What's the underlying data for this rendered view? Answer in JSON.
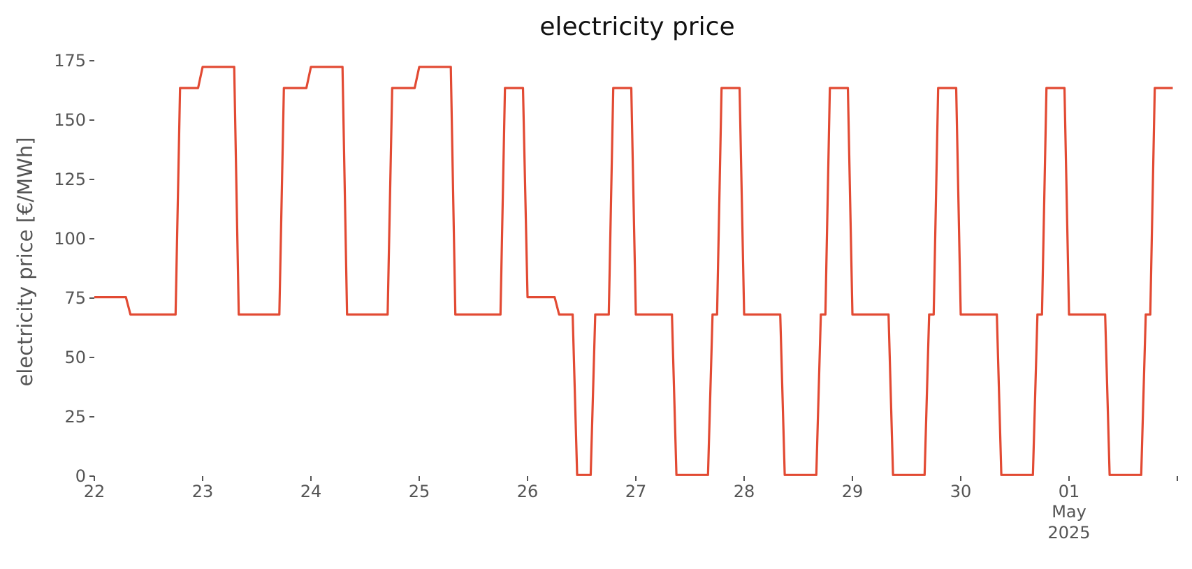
{
  "chart_data": {
    "type": "line",
    "title": "electricity price",
    "xlabel": "",
    "ylabel": "electricity price [€/MWh]",
    "ylim": [
      0,
      175
    ],
    "yticks": [
      0,
      25,
      50,
      75,
      100,
      125,
      150,
      175
    ],
    "xlim": [
      "2025-04-22",
      "2025-05-02"
    ],
    "xticks": [
      {
        "date": "2025-04-22",
        "label": "22"
      },
      {
        "date": "2025-04-23",
        "label": "23"
      },
      {
        "date": "2025-04-24",
        "label": "24"
      },
      {
        "date": "2025-04-25",
        "label": "25"
      },
      {
        "date": "2025-04-26",
        "label": "26"
      },
      {
        "date": "2025-04-27",
        "label": "27"
      },
      {
        "date": "2025-04-28",
        "label": "28"
      },
      {
        "date": "2025-04-29",
        "label": "29"
      },
      {
        "date": "2025-04-30",
        "label": "30"
      },
      {
        "date": "2025-05-01",
        "label": "01",
        "sublabels": [
          "May",
          "2025"
        ]
      },
      {
        "date": "2025-05-02",
        "label": ""
      }
    ],
    "grid": false,
    "colors": {
      "line": "#E24A33"
    },
    "series": [
      {
        "x": [
          "2025-04-22 00:00",
          "2025-04-22 07:00",
          "2025-04-22 08:00",
          "2025-04-22 18:00",
          "2025-04-22 19:00",
          "2025-04-22 23:00",
          "2025-04-23 00:00",
          "2025-04-23 07:00",
          "2025-04-23 08:00",
          "2025-04-23 17:00",
          "2025-04-23 18:00",
          "2025-04-23 23:00",
          "2025-04-24 00:00",
          "2025-04-24 07:00",
          "2025-04-24 08:00",
          "2025-04-24 17:00",
          "2025-04-24 18:00",
          "2025-04-24 23:00",
          "2025-04-25 00:00",
          "2025-04-25 07:00",
          "2025-04-25 08:00",
          "2025-04-25 18:00",
          "2025-04-25 19:00",
          "2025-04-25 23:00",
          "2025-04-26 00:00",
          "2025-04-26 06:00",
          "2025-04-26 07:00",
          "2025-04-26 10:00",
          "2025-04-26 11:00",
          "2025-04-26 14:00",
          "2025-04-26 15:00",
          "2025-04-26 18:00",
          "2025-04-26 19:00",
          "2025-04-26 23:00",
          "2025-04-27 00:00",
          "2025-04-27 08:00",
          "2025-04-27 09:00",
          "2025-04-27 16:00",
          "2025-04-27 17:00",
          "2025-04-27 18:00",
          "2025-04-27 19:00",
          "2025-04-27 23:00",
          "2025-04-28 00:00",
          "2025-04-28 08:00",
          "2025-04-28 09:00",
          "2025-04-28 16:00",
          "2025-04-28 17:00",
          "2025-04-28 18:00",
          "2025-04-28 19:00",
          "2025-04-28 23:00",
          "2025-04-29 00:00",
          "2025-04-29 08:00",
          "2025-04-29 09:00",
          "2025-04-29 16:00",
          "2025-04-29 17:00",
          "2025-04-29 18:00",
          "2025-04-29 19:00",
          "2025-04-29 23:00",
          "2025-04-30 00:00",
          "2025-04-30 08:00",
          "2025-04-30 09:00",
          "2025-04-30 16:00",
          "2025-04-30 17:00",
          "2025-04-30 18:00",
          "2025-04-30 19:00",
          "2025-04-30 23:00",
          "2025-05-01 00:00",
          "2025-05-01 08:00",
          "2025-05-01 09:00",
          "2025-05-01 16:00",
          "2025-05-01 17:00",
          "2025-05-01 18:00",
          "2025-05-01 19:00",
          "2025-05-01 23:00"
        ],
        "y": [
          75.4,
          75.4,
          68.1,
          68.1,
          163.5,
          163.5,
          172.4,
          172.4,
          68.1,
          68.1,
          163.5,
          163.5,
          172.4,
          172.4,
          68.1,
          68.1,
          163.5,
          163.5,
          172.4,
          172.4,
          68.1,
          68.1,
          163.5,
          163.5,
          75.4,
          75.4,
          68.1,
          68.1,
          0.5,
          0.5,
          68.1,
          68.1,
          163.5,
          163.5,
          68.1,
          68.1,
          0.5,
          0.5,
          68.1,
          68.1,
          163.5,
          163.5,
          68.1,
          68.1,
          0.5,
          0.5,
          68.1,
          68.1,
          163.5,
          163.5,
          68.1,
          68.1,
          0.5,
          0.5,
          68.1,
          68.1,
          163.5,
          163.5,
          68.1,
          68.1,
          0.5,
          0.5,
          68.1,
          68.1,
          163.5,
          163.5,
          68.1,
          68.1,
          0.5,
          0.5,
          68.1,
          68.1,
          163.5,
          163.5
        ]
      }
    ]
  }
}
